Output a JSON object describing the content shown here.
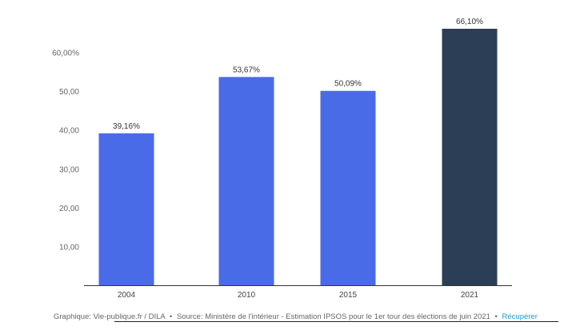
{
  "chart_data": {
    "type": "bar",
    "categories": [
      "2004",
      "2010",
      "2015",
      "2021"
    ],
    "values": [
      39.16,
      53.67,
      50.09,
      66.1
    ],
    "value_labels": [
      "39,16%",
      "53,67%",
      "50,09%",
      "66,10%"
    ],
    "ylim": [
      0,
      66.1
    ],
    "yticks": [
      10,
      20,
      30,
      40,
      50,
      60
    ],
    "ytick_labels": [
      "10,00",
      "20,00",
      "30,00",
      "40,00",
      "50,00",
      "60,00%"
    ],
    "grid": false,
    "legend": "none",
    "colors": {
      "default_bar": "#4a6be8",
      "highlight_bar": "#2c3e55",
      "axis": "#333333"
    },
    "highlight_index": 3
  },
  "footer": {
    "credit": "Graphique: Vie-publique.fr / DILA",
    "separator_1": "•",
    "source": "Source: Ministère de l'intérieur - Estimation IPSOS pour le 1er tour des élections de juin 2021",
    "separator_2": "•",
    "link": "Récupérer"
  }
}
